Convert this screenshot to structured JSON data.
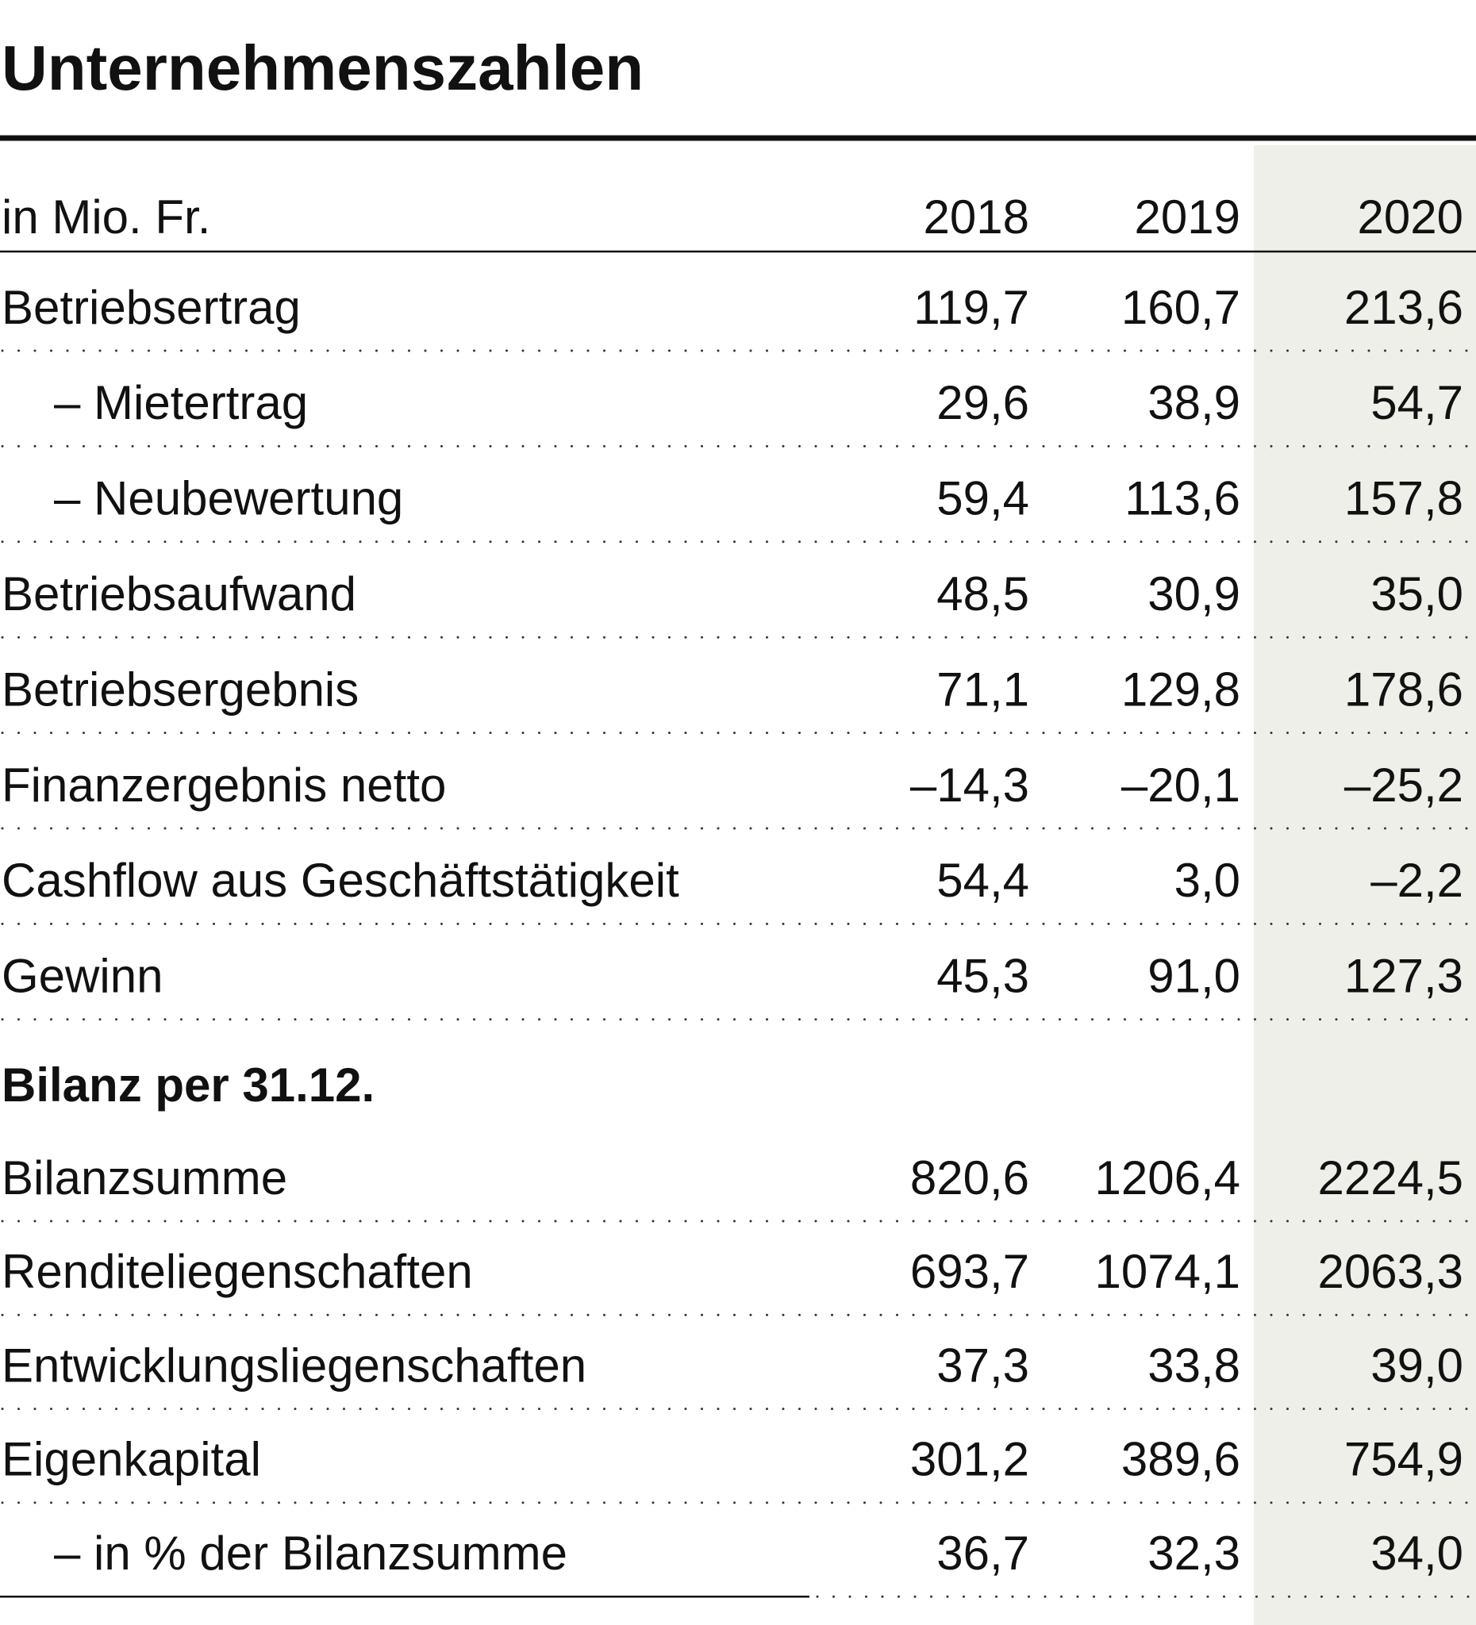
{
  "title": "Unternehmenszahlen",
  "table": {
    "header": [
      "in Mio. Fr.",
      "2018",
      "2019",
      "2020"
    ],
    "rows": [
      [
        "Betriebsertrag",
        "119,7",
        "160,7",
        "213,6"
      ],
      [
        "– Mietertrag",
        "29,6",
        "38,9",
        "54,7"
      ],
      [
        "– Neubewertung",
        "59,4",
        "113,6",
        "157,8"
      ],
      [
        "Betriebsaufwand",
        "48,5",
        "30,9",
        "35,0"
      ],
      [
        "Betriebsergebnis",
        "71,1",
        "129,8",
        "178,6"
      ],
      [
        "Finanzergebnis netto",
        "–14,3",
        "–20,1",
        "–25,2"
      ],
      [
        "Cashflow aus Geschäftstätigkeit",
        "54,4",
        "3,0",
        "–2,2"
      ],
      [
        "Gewinn",
        "45,3",
        "91,0",
        "127,3"
      ]
    ]
  },
  "section": {
    "title": "Bilanz per 31.12.",
    "rows": [
      [
        "Bilanzsumme",
        "820,6",
        "1206,4",
        "2224,5"
      ],
      [
        "Renditeliegenschaften",
        "693,7",
        "1074,1",
        "2063,3"
      ],
      [
        "Entwicklungsliegenschaften",
        "37,3",
        "33,8",
        "39,0"
      ],
      [
        "Eigenkapital",
        "301,2",
        "389,6",
        "754,9"
      ],
      [
        "– in % der Bilanzsumme",
        "36,7",
        "32,3",
        "34,0"
      ]
    ]
  }
}
